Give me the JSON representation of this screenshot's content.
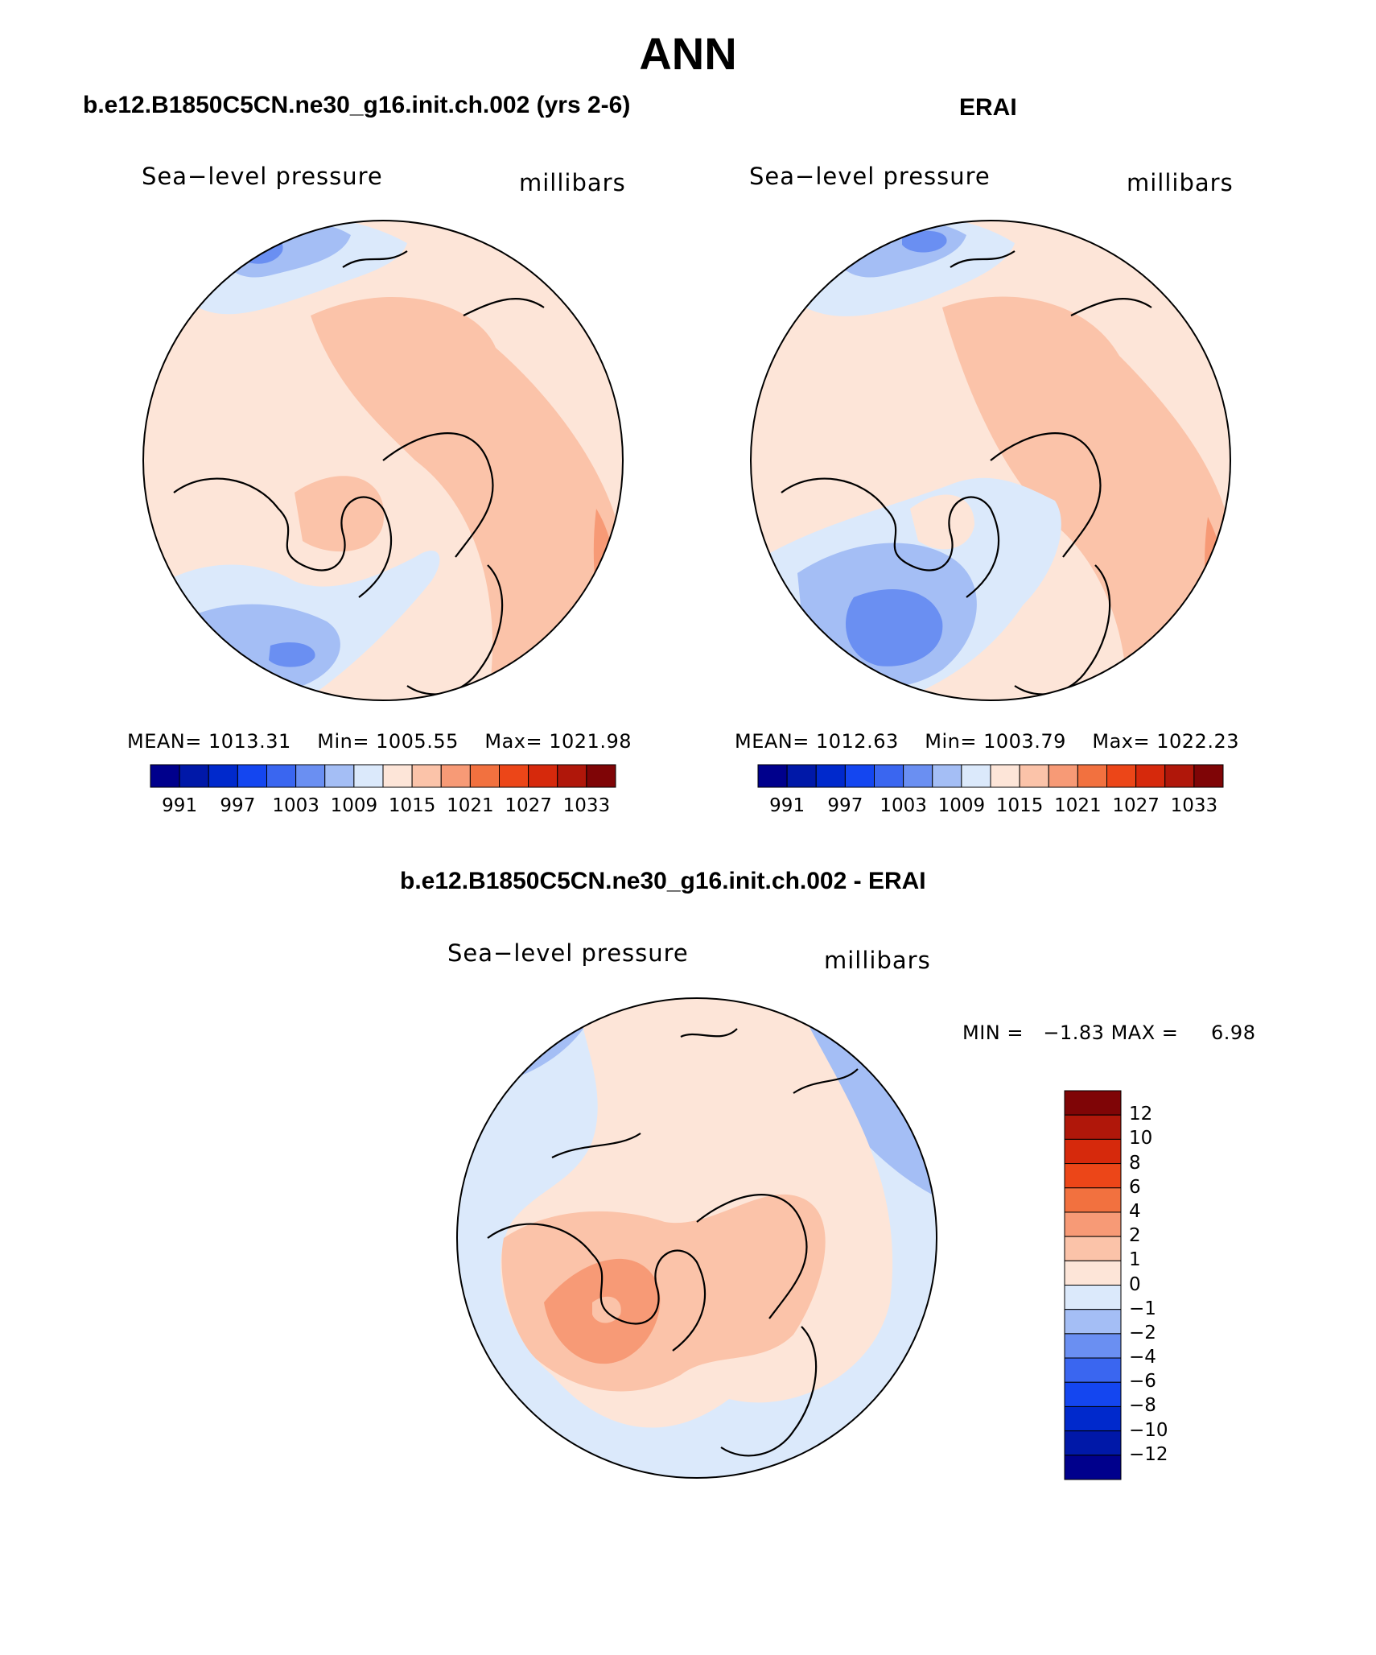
{
  "colors": {
    "scale": [
      "#00008c",
      "#0018a8",
      "#0029cc",
      "#1446f0",
      "#3a66f0",
      "#6a8ff2",
      "#a4bef5",
      "#dbe9fb",
      "#fde5d8",
      "#fbc3a9",
      "#f79a76",
      "#f2713f",
      "#ec4618",
      "#d6290c",
      "#b0170a",
      "#7f0506"
    ],
    "land": "#000000"
  },
  "figure": {
    "title": "ANN"
  },
  "panels": [
    {
      "title": "b.e12.B1850C5CN.ne30_g16.init.ch.002 (yrs 2-6)",
      "variable": "Sea−level pressure",
      "units": "millibars",
      "stats": {
        "mean_label": "MEAN=",
        "mean": "1013.31",
        "min_label": "Min=",
        "min": "1005.55",
        "max_label": "Max=",
        "max": "1021.98"
      },
      "colorbar_ticks": [
        "991",
        "997",
        "1003",
        "1009",
        "1015",
        "1021",
        "1027",
        "1033"
      ]
    },
    {
      "title": "ERAI",
      "variable": "Sea−level pressure",
      "units": "millibars",
      "stats": {
        "mean_label": "MEAN=",
        "mean": "1012.63",
        "min_label": "Min=",
        "min": "1003.79",
        "max_label": "Max=",
        "max": "1022.23"
      },
      "colorbar_ticks": [
        "991",
        "997",
        "1003",
        "1009",
        "1015",
        "1021",
        "1027",
        "1033"
      ]
    },
    {
      "title": "b.e12.B1850C5CN.ne30_g16.init.ch.002 - ERAI",
      "variable": "Sea−level pressure",
      "units": "millibars",
      "stats": {
        "min_label": "MIN =",
        "min": "−1.83",
        "max_label": "MAX =",
        "max": "6.98"
      },
      "colorbar_ticks": [
        "12",
        "10",
        "8",
        "6",
        "4",
        "2",
        "1",
        "0",
        "−1",
        "−2",
        "−4",
        "−6",
        "−8",
        "−10",
        "−12"
      ]
    }
  ]
}
